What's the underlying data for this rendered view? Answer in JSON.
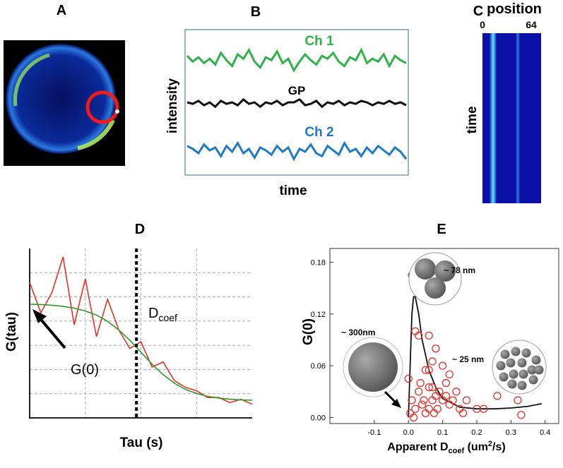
{
  "panel_labels": [
    "A",
    "B",
    "C",
    "D",
    "E"
  ],
  "chart_data": [
    {
      "type": "line",
      "xlabel": "time",
      "ylabel": "intensity",
      "ylim": [
        0,
        1
      ],
      "series": [
        {
          "name": "Ch 1",
          "color": "#2db34a",
          "values": [
            0.82,
            0.78,
            0.81,
            0.77,
            0.8,
            0.76,
            0.84,
            0.79,
            0.75,
            0.83,
            0.8,
            0.86,
            0.78,
            0.74,
            0.81,
            0.79,
            0.85,
            0.77,
            0.8,
            0.72,
            0.78,
            0.83,
            0.79,
            0.76,
            0.82,
            0.8,
            0.84,
            0.78,
            0.75,
            0.81,
            0.79,
            0.86,
            0.77,
            0.8,
            0.78,
            0.83,
            0.75,
            0.82,
            0.79,
            0.77
          ]
        },
        {
          "name": "GP",
          "color": "#111111",
          "values": [
            0.5,
            0.49,
            0.51,
            0.48,
            0.5,
            0.47,
            0.51,
            0.49,
            0.5,
            0.48,
            0.52,
            0.49,
            0.5,
            0.47,
            0.5,
            0.49,
            0.51,
            0.48,
            0.5,
            0.5,
            0.52,
            0.48,
            0.49,
            0.51,
            0.47,
            0.5,
            0.49,
            0.51,
            0.48,
            0.5,
            0.49,
            0.51,
            0.5,
            0.48,
            0.5,
            0.49,
            0.51,
            0.49,
            0.5,
            0.48
          ]
        },
        {
          "name": "Ch 2",
          "color": "#1f7bc4",
          "values": [
            0.2,
            0.18,
            0.15,
            0.21,
            0.17,
            0.19,
            0.13,
            0.2,
            0.16,
            0.22,
            0.15,
            0.18,
            0.12,
            0.19,
            0.17,
            0.14,
            0.2,
            0.16,
            0.19,
            0.11,
            0.18,
            0.16,
            0.21,
            0.15,
            0.13,
            0.2,
            0.17,
            0.14,
            0.22,
            0.16,
            0.18,
            0.13,
            0.19,
            0.15,
            0.2,
            0.17,
            0.14,
            0.19,
            0.16,
            0.11
          ]
        }
      ]
    },
    {
      "type": "kymograph",
      "title": "position",
      "ylabel": "time",
      "xlim": [
        0,
        64
      ],
      "xticks": [
        0,
        64
      ]
    },
    {
      "type": "line",
      "xlabel": "Tau (s)",
      "ylabel": "G(tau)",
      "xlim": [
        0,
        1
      ],
      "ylim": [
        0,
        1
      ],
      "grid": true,
      "annotation": "G(0)",
      "marker_label": "D",
      "marker_label_sub": "coef",
      "marker_x": 0.48,
      "x": [
        0,
        0.05,
        0.1,
        0.15,
        0.2,
        0.25,
        0.3,
        0.35,
        0.4,
        0.45,
        0.5,
        0.55,
        0.6,
        0.65,
        0.7,
        0.75,
        0.8,
        0.85,
        0.9,
        0.95,
        1.0
      ],
      "series": [
        {
          "color": "#e8302a",
          "values": [
            0.8,
            0.62,
            0.74,
            0.95,
            0.55,
            0.82,
            0.48,
            0.7,
            0.52,
            0.41,
            0.45,
            0.3,
            0.33,
            0.22,
            0.18,
            0.16,
            0.12,
            0.12,
            0.09,
            0.11,
            0.08
          ]
        },
        {
          "color": "#2a9a2a",
          "values": [
            0.671,
            0.669,
            0.665,
            0.658,
            0.648,
            0.631,
            0.607,
            0.57,
            0.52,
            0.458,
            0.388,
            0.317,
            0.255,
            0.205,
            0.168,
            0.144,
            0.127,
            0.117,
            0.11,
            0.106,
            0.104
          ]
        }
      ]
    },
    {
      "type": "scatter",
      "xlabel": "Apparent D",
      "xlabel_sub": "coef",
      "xlabel_unit": " (um",
      "xlabel_sup": "2",
      "xlabel_end": "/s)",
      "ylabel": "G(0)",
      "xlim": [
        -0.23,
        0.44
      ],
      "ylim": [
        -0.007,
        0.196
      ],
      "xticks": [
        -0.1,
        {
          "value": 0,
          "label": "0.0"
        },
        0.1,
        0.2,
        0.3,
        0.4
      ],
      "yticks": [
        {
          "value": 0,
          "label": "0.00"
        },
        {
          "value": 0.06,
          "label": "0.06"
        },
        {
          "value": 0.12,
          "label": "0.12"
        },
        {
          "value": 0.18,
          "label": "0.18"
        }
      ],
      "annotations": [
        "~ 300nm",
        "~ 78 nm",
        "~ 25 nm"
      ],
      "points": {
        "color": "#e8302a",
        "x": [
          0.01,
          0.02,
          0.03,
          0.06,
          0.08,
          0.05,
          0.06,
          0.1,
          0.12,
          0.11,
          0.07,
          0.0,
          0.01,
          0.02,
          0.03,
          0.04,
          0.05,
          0.06,
          0.07,
          0.08,
          0.09,
          0.1,
          0.12,
          0.13,
          0.14,
          0.15,
          0.16,
          0.17,
          0.2,
          0.22,
          0.26,
          0.32,
          0.33,
          0.005,
          0.015,
          0.035,
          0.045,
          0.075,
          0.085,
          0.11,
          0.06,
          0.07
        ],
        "y": [
          0.165,
          0.1,
          0.095,
          0.095,
          0.08,
          0.055,
          0.055,
          0.06,
          0.05,
          0.04,
          0.035,
          0.045,
          0.02,
          0.01,
          0.03,
          0.015,
          0.005,
          0.01,
          0.02,
          0.025,
          0.03,
          0.02,
          0.015,
          0.02,
          0.03,
          0.01,
          0.005,
          0.02,
          0.01,
          0.01,
          0.025,
          0.02,
          0.003,
          0.005,
          0.0,
          0.04,
          0.02,
          0.005,
          0.01,
          0.025,
          0.035,
          0.065
        ]
      },
      "fit": {
        "color": "#111111",
        "x": [
          0,
          0.005,
          0.01,
          0.015,
          0.02,
          0.03,
          0.04,
          0.06,
          0.08,
          0.1,
          0.15,
          0.2,
          0.25,
          0.3,
          0.35,
          0.39
        ],
        "y": [
          0.0,
          0.06,
          0.12,
          0.14,
          0.14,
          0.12,
          0.09,
          0.055,
          0.035,
          0.022,
          0.012,
          0.01,
          0.01,
          0.011,
          0.013,
          0.016
        ]
      }
    }
  ]
}
